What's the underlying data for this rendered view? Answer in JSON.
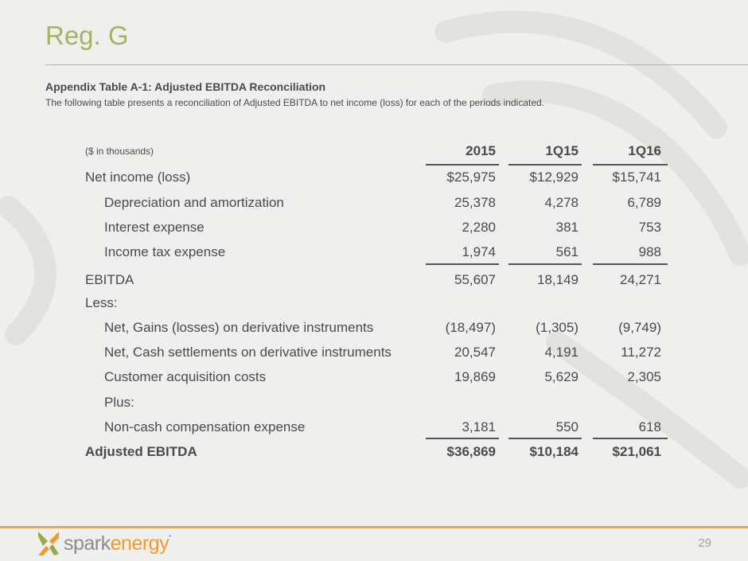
{
  "slide": {
    "title": "Reg. G",
    "page_number": "29"
  },
  "table": {
    "heading": "Appendix Table A-1: Adjusted EBITDA Reconciliation",
    "description": "The following table presents a reconciliation of Adjusted EBITDA to net income (loss) for each of the periods indicated.",
    "units": "($ in thousands)",
    "columns": [
      "2015",
      "1Q15",
      "1Q16"
    ],
    "rows": [
      {
        "label": "Net income (loss)",
        "values": [
          "$25,975",
          "$12,929",
          "$15,741"
        ]
      },
      {
        "label": "Depreciation and amortization",
        "values": [
          "25,378",
          "4,278",
          "6,789"
        ]
      },
      {
        "label": "Interest expense",
        "values": [
          "2,280",
          "381",
          "753"
        ]
      },
      {
        "label": "Income tax expense",
        "values": [
          "1,974",
          "561",
          "988"
        ]
      },
      {
        "label": "EBITDA",
        "values": [
          "55,607",
          "18,149",
          "24,271"
        ]
      },
      {
        "label": "Less:",
        "values": [
          "",
          "",
          ""
        ]
      },
      {
        "label": "Net, Gains (losses) on derivative instruments",
        "values": [
          "(18,497)",
          "(1,305)",
          "(9,749)"
        ]
      },
      {
        "label": "Net, Cash settlements on derivative instruments",
        "values": [
          "20,547",
          "4,191",
          "11,272"
        ]
      },
      {
        "label": "Customer acquisition costs",
        "values": [
          "19,869",
          "5,629",
          "2,305"
        ]
      },
      {
        "label": "Plus:",
        "values": [
          "",
          "",
          ""
        ]
      },
      {
        "label": "Non-cash compensation expense",
        "values": [
          "3,181",
          "550",
          "618"
        ]
      },
      {
        "label": "Adjusted EBITDA",
        "values": [
          "$36,869",
          "$10,184",
          "$21,061"
        ]
      }
    ]
  },
  "logo": {
    "text_left": "spark",
    "text_right": "energy",
    "mark": "tm",
    "icon": "spark-energy-logo-icon"
  },
  "colors": {
    "title": "#a4b463",
    "footer_rule": "#f5a23f",
    "logo_orange": "#f39a2d",
    "logo_green": "#9aa94f"
  }
}
